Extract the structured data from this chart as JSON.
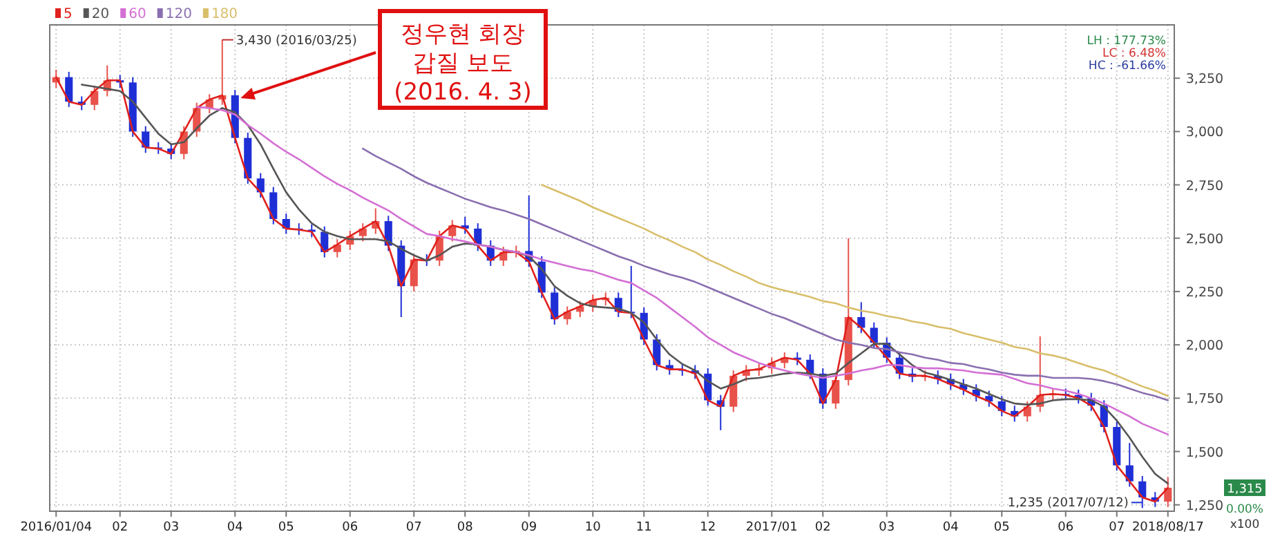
{
  "chart_data": {
    "type": "candlestick",
    "categories": [
      "2016/01/04",
      null,
      null,
      null,
      null,
      "02",
      null,
      null,
      null,
      "03",
      null,
      null,
      null,
      null,
      "04",
      null,
      null,
      null,
      "05",
      null,
      null,
      null,
      null,
      "06",
      null,
      null,
      null,
      null,
      "07",
      null,
      null,
      null,
      "08",
      null,
      null,
      null,
      null,
      "09",
      null,
      null,
      null,
      null,
      "10",
      null,
      null,
      null,
      "11",
      null,
      null,
      null,
      null,
      "12",
      null,
      null,
      null,
      null,
      "2017/01",
      null,
      null,
      null,
      "02",
      null,
      null,
      null,
      null,
      "03",
      null,
      null,
      null,
      null,
      "04",
      null,
      null,
      null,
      "05",
      null,
      null,
      null,
      null,
      "06",
      null,
      null,
      null,
      "07",
      null,
      null,
      null,
      "2018/08/17"
    ],
    "ohlc": [
      [
        3230,
        3290,
        3205,
        3255
      ],
      [
        3255,
        3280,
        3115,
        3140
      ],
      [
        3140,
        3165,
        3100,
        3125
      ],
      [
        3125,
        3215,
        3100,
        3190
      ],
      [
        3190,
        3310,
        3165,
        3240
      ],
      [
        3240,
        3265,
        3205,
        3230
      ],
      [
        3230,
        3255,
        2975,
        3000
      ],
      [
        3000,
        3025,
        2900,
        2925
      ],
      [
        2925,
        2950,
        2895,
        2920
      ],
      [
        2920,
        2945,
        2870,
        2895
      ],
      [
        2895,
        3025,
        2870,
        3000
      ],
      [
        3000,
        3135,
        2975,
        3110
      ],
      [
        3110,
        3175,
        3085,
        3150
      ],
      [
        3150,
        3430,
        3125,
        3170
      ],
      [
        3170,
        3195,
        2945,
        2970
      ],
      [
        2970,
        2995,
        2755,
        2780
      ],
      [
        2780,
        2805,
        2690,
        2715
      ],
      [
        2715,
        2740,
        2565,
        2590
      ],
      [
        2590,
        2615,
        2520,
        2545
      ],
      [
        2545,
        2570,
        2515,
        2540
      ],
      [
        2540,
        2565,
        2505,
        2530
      ],
      [
        2530,
        2555,
        2410,
        2435
      ],
      [
        2435,
        2495,
        2410,
        2470
      ],
      [
        2470,
        2535,
        2445,
        2510
      ],
      [
        2510,
        2570,
        2485,
        2545
      ],
      [
        2545,
        2640,
        2520,
        2580
      ],
      [
        2580,
        2605,
        2440,
        2465
      ],
      [
        2465,
        2490,
        2130,
        2275
      ],
      [
        2275,
        2425,
        2250,
        2400
      ],
      [
        2400,
        2425,
        2370,
        2395
      ],
      [
        2395,
        2535,
        2370,
        2510
      ],
      [
        2510,
        2585,
        2485,
        2560
      ],
      [
        2560,
        2600,
        2520,
        2545
      ],
      [
        2545,
        2570,
        2440,
        2465
      ],
      [
        2465,
        2490,
        2370,
        2395
      ],
      [
        2395,
        2460,
        2370,
        2435
      ],
      [
        2435,
        2465,
        2410,
        2440
      ],
      [
        2440,
        2700,
        2365,
        2390
      ],
      [
        2390,
        2415,
        2220,
        2245
      ],
      [
        2245,
        2270,
        2095,
        2120
      ],
      [
        2120,
        2180,
        2095,
        2155
      ],
      [
        2155,
        2205,
        2130,
        2180
      ],
      [
        2180,
        2235,
        2155,
        2210
      ],
      [
        2210,
        2245,
        2185,
        2220
      ],
      [
        2220,
        2245,
        2130,
        2155
      ],
      [
        2155,
        2370,
        2125,
        2150
      ],
      [
        2150,
        2175,
        2000,
        2025
      ],
      [
        2025,
        2050,
        1880,
        1905
      ],
      [
        1905,
        1930,
        1860,
        1885
      ],
      [
        1885,
        1910,
        1855,
        1880
      ],
      [
        1880,
        1905,
        1840,
        1865
      ],
      [
        1865,
        1890,
        1715,
        1740
      ],
      [
        1740,
        1765,
        1600,
        1710
      ],
      [
        1710,
        1880,
        1685,
        1855
      ],
      [
        1855,
        1905,
        1830,
        1880
      ],
      [
        1880,
        1915,
        1855,
        1890
      ],
      [
        1890,
        1940,
        1865,
        1915
      ],
      [
        1915,
        1965,
        1890,
        1940
      ],
      [
        1940,
        1965,
        1905,
        1930
      ],
      [
        1930,
        1955,
        1840,
        1865
      ],
      [
        1865,
        1890,
        1700,
        1725
      ],
      [
        1725,
        1860,
        1700,
        1835
      ],
      [
        1835,
        2500,
        1810,
        2130
      ],
      [
        2130,
        2200,
        2055,
        2080
      ],
      [
        2080,
        2105,
        1985,
        2010
      ],
      [
        2010,
        2035,
        1915,
        1940
      ],
      [
        1940,
        1965,
        1840,
        1865
      ],
      [
        1865,
        1890,
        1825,
        1850
      ],
      [
        1850,
        1880,
        1830,
        1855
      ],
      [
        1855,
        1880,
        1815,
        1840
      ],
      [
        1840,
        1865,
        1790,
        1815
      ],
      [
        1815,
        1840,
        1765,
        1790
      ],
      [
        1790,
        1815,
        1735,
        1760
      ],
      [
        1760,
        1785,
        1710,
        1735
      ],
      [
        1735,
        1760,
        1665,
        1690
      ],
      [
        1690,
        1715,
        1640,
        1665
      ],
      [
        1665,
        1735,
        1640,
        1710
      ],
      [
        1710,
        2040,
        1685,
        1765
      ],
      [
        1765,
        1795,
        1740,
        1770
      ],
      [
        1770,
        1795,
        1740,
        1765
      ],
      [
        1765,
        1790,
        1725,
        1750
      ],
      [
        1750,
        1775,
        1690,
        1715
      ],
      [
        1715,
        1740,
        1590,
        1615
      ],
      [
        1615,
        1640,
        1410,
        1435
      ],
      [
        1435,
        1540,
        1335,
        1360
      ],
      [
        1360,
        1385,
        1235,
        1285
      ],
      [
        1285,
        1310,
        1240,
        1265
      ],
      [
        1265,
        1380,
        1240,
        1330
      ]
    ],
    "colors": [
      "#e8524a",
      "#1f2fd6",
      "#1f2fd6",
      "#e8524a",
      "#e8524a",
      "#1f2fd6",
      "#1f2fd6",
      "#1f2fd6",
      "#1f2fd6",
      "#1f2fd6",
      "#e8524a",
      "#e8524a",
      "#e8524a",
      "#e8524a",
      "#1f2fd6",
      "#1f2fd6",
      "#1f2fd6",
      "#1f2fd6",
      "#1f2fd6",
      "#1f2fd6",
      "#1f2fd6",
      "#1f2fd6",
      "#e8524a",
      "#e8524a",
      "#e8524a",
      "#e8524a",
      "#1f2fd6",
      "#1f2fd6",
      "#e8524a",
      "#1f2fd6",
      "#e8524a",
      "#e8524a",
      "#1f2fd6",
      "#1f2fd6",
      "#1f2fd6",
      "#e8524a",
      "#e8524a",
      "#1f2fd6",
      "#1f2fd6",
      "#1f2fd6",
      "#e8524a",
      "#e8524a",
      "#e8524a",
      "#e8524a",
      "#1f2fd6",
      "#1f2fd6",
      "#1f2fd6",
      "#1f2fd6",
      "#1f2fd6",
      "#1f2fd6",
      "#1f2fd6",
      "#1f2fd6",
      "#1f2fd6",
      "#e8524a",
      "#e8524a",
      "#e8524a",
      "#e8524a",
      "#e8524a",
      "#1f2fd6",
      "#1f2fd6",
      "#1f2fd6",
      "#e8524a",
      "#e8524a",
      "#1f2fd6",
      "#1f2fd6",
      "#1f2fd6",
      "#1f2fd6",
      "#1f2fd6",
      "#e8524a",
      "#1f2fd6",
      "#1f2fd6",
      "#1f2fd6",
      "#1f2fd6",
      "#1f2fd6",
      "#1f2fd6",
      "#1f2fd6",
      "#e8524a",
      "#e8524a",
      "#e8524a",
      "#1f2fd6",
      "#1f2fd6",
      "#1f2fd6",
      "#1f2fd6",
      "#1f2fd6",
      "#1f2fd6",
      "#1f2fd6",
      "#1f2fd6",
      "#e8524a"
    ],
    "series": [
      {
        "name": "5",
        "type": "line",
        "color": "#e0201c",
        "values": [
          3255,
          3140,
          3125,
          3190,
          3240,
          3240,
          3000,
          2925,
          2920,
          2895,
          3000,
          3110,
          3150,
          3170,
          2970,
          2780,
          2715,
          2590,
          2545,
          2540,
          2530,
          2435,
          2470,
          2510,
          2545,
          2580,
          2465,
          2275,
          2400,
          2395,
          2510,
          2560,
          2545,
          2465,
          2395,
          2435,
          2435,
          2390,
          2245,
          2120,
          2155,
          2180,
          2210,
          2220,
          2155,
          2150,
          2025,
          1905,
          1885,
          1885,
          1865,
          1740,
          1710,
          1855,
          1880,
          1885,
          1915,
          1940,
          1930,
          1865,
          1725,
          1835,
          2130,
          2080,
          2010,
          1940,
          1865,
          1855,
          1855,
          1840,
          1815,
          1790,
          1760,
          1735,
          1690,
          1665,
          1710,
          1765,
          1770,
          1765,
          1750,
          1715,
          1615,
          1435,
          1360,
          1285,
          1265,
          1330
        ]
      },
      {
        "name": "20",
        "type": "line",
        "color": "#555555",
        "values": [
          null,
          null,
          3220,
          3210,
          3200,
          3190,
          3140,
          3065,
          2990,
          2940,
          2950,
          3015,
          3075,
          3110,
          3090,
          3030,
          2940,
          2825,
          2715,
          2635,
          2570,
          2530,
          2510,
          2495,
          2495,
          2495,
          2485,
          2450,
          2420,
          2395,
          2420,
          2460,
          2475,
          2470,
          2460,
          2445,
          2435,
          2415,
          2355,
          2275,
          2230,
          2195,
          2180,
          2175,
          2170,
          2150,
          2105,
          2025,
          1955,
          1910,
          1880,
          1830,
          1795,
          1815,
          1840,
          1845,
          1855,
          1865,
          1870,
          1865,
          1855,
          1865,
          1915,
          1960,
          2005,
          2005,
          1955,
          1905,
          1870,
          1855,
          1835,
          1815,
          1795,
          1770,
          1745,
          1725,
          1720,
          1725,
          1740,
          1745,
          1745,
          1740,
          1710,
          1645,
          1565,
          1475,
          1395,
          1350
        ]
      },
      {
        "name": "60",
        "type": "line",
        "color": "#d46fd4",
        "values": [
          null,
          null,
          null,
          null,
          null,
          null,
          null,
          null,
          null,
          null,
          null,
          3115,
          3110,
          3100,
          3080,
          3030,
          2990,
          2945,
          2905,
          2870,
          2830,
          2790,
          2755,
          2725,
          2690,
          2660,
          2630,
          2590,
          2555,
          2520,
          2510,
          2495,
          2485,
          2470,
          2460,
          2445,
          2435,
          2420,
          2400,
          2385,
          2370,
          2355,
          2345,
          2325,
          2305,
          2290,
          2255,
          2220,
          2175,
          2130,
          2085,
          2035,
          2000,
          1965,
          1940,
          1915,
          1895,
          1880,
          1865,
          1855,
          1845,
          1855,
          1865,
          1880,
          1890,
          1905,
          1905,
          1895,
          1890,
          1890,
          1885,
          1880,
          1870,
          1865,
          1860,
          1840,
          1820,
          1810,
          1795,
          1785,
          1770,
          1750,
          1725,
          1695,
          1665,
          1630,
          1605,
          1580
        ]
      },
      {
        "name": "120",
        "type": "line",
        "color": "#8a6fb0",
        "values": [
          null,
          null,
          null,
          null,
          null,
          null,
          null,
          null,
          null,
          null,
          null,
          null,
          null,
          null,
          null,
          null,
          null,
          null,
          null,
          null,
          null,
          null,
          null,
          null,
          2920,
          2885,
          2855,
          2825,
          2790,
          2760,
          2735,
          2710,
          2685,
          2665,
          2645,
          2630,
          2610,
          2590,
          2565,
          2540,
          2515,
          2490,
          2465,
          2440,
          2415,
          2395,
          2370,
          2350,
          2330,
          2315,
          2295,
          2270,
          2245,
          2220,
          2195,
          2170,
          2145,
          2125,
          2100,
          2075,
          2050,
          2025,
          2010,
          2000,
          1985,
          1980,
          1965,
          1955,
          1940,
          1930,
          1915,
          1910,
          1895,
          1885,
          1870,
          1860,
          1855,
          1855,
          1845,
          1845,
          1845,
          1840,
          1830,
          1815,
          1795,
          1775,
          1760,
          1740
        ]
      },
      {
        "name": "180",
        "type": "line",
        "color": "#d9be6a",
        "values": [
          null,
          null,
          null,
          null,
          null,
          null,
          null,
          null,
          null,
          null,
          null,
          null,
          null,
          null,
          null,
          null,
          null,
          null,
          null,
          null,
          null,
          null,
          null,
          null,
          null,
          null,
          null,
          null,
          null,
          null,
          null,
          null,
          null,
          null,
          null,
          null,
          null,
          null,
          2750,
          2725,
          2700,
          2675,
          2645,
          2620,
          2595,
          2570,
          2545,
          2515,
          2490,
          2460,
          2435,
          2400,
          2375,
          2345,
          2320,
          2290,
          2270,
          2255,
          2240,
          2225,
          2205,
          2195,
          2175,
          2160,
          2150,
          2135,
          2125,
          2110,
          2100,
          2085,
          2075,
          2055,
          2040,
          2025,
          2010,
          1990,
          1980,
          1960,
          1950,
          1935,
          1915,
          1895,
          1880,
          1855,
          1830,
          1805,
          1785,
          1760
        ]
      }
    ],
    "ylim": [
      1220,
      3500
    ],
    "yticks": [
      {
        "value": 1250,
        "label": "1,250"
      },
      {
        "value": 1500,
        "label": "1,500"
      },
      {
        "value": 1750,
        "label": "1,750"
      },
      {
        "value": 2000,
        "label": "2,000"
      },
      {
        "value": 2250,
        "label": "2,250"
      },
      {
        "value": 2500,
        "label": "2,500"
      },
      {
        "value": 2750,
        "label": "2,750"
      },
      {
        "value": 3000,
        "label": "3,000"
      },
      {
        "value": 3250,
        "label": "3,250"
      }
    ],
    "grid": true,
    "legend": "top left",
    "annotations": [
      "3,430 (2016/03/25)",
      "1,235 (2017/07/12)",
      "정우현 회장\n갑질 보도\n(2016. 4. 3)",
      "LH : 177.73%",
      "LC : 6.48%",
      "HC : -61.66%",
      "1,315",
      "0.00%",
      "x100"
    ]
  }
}
